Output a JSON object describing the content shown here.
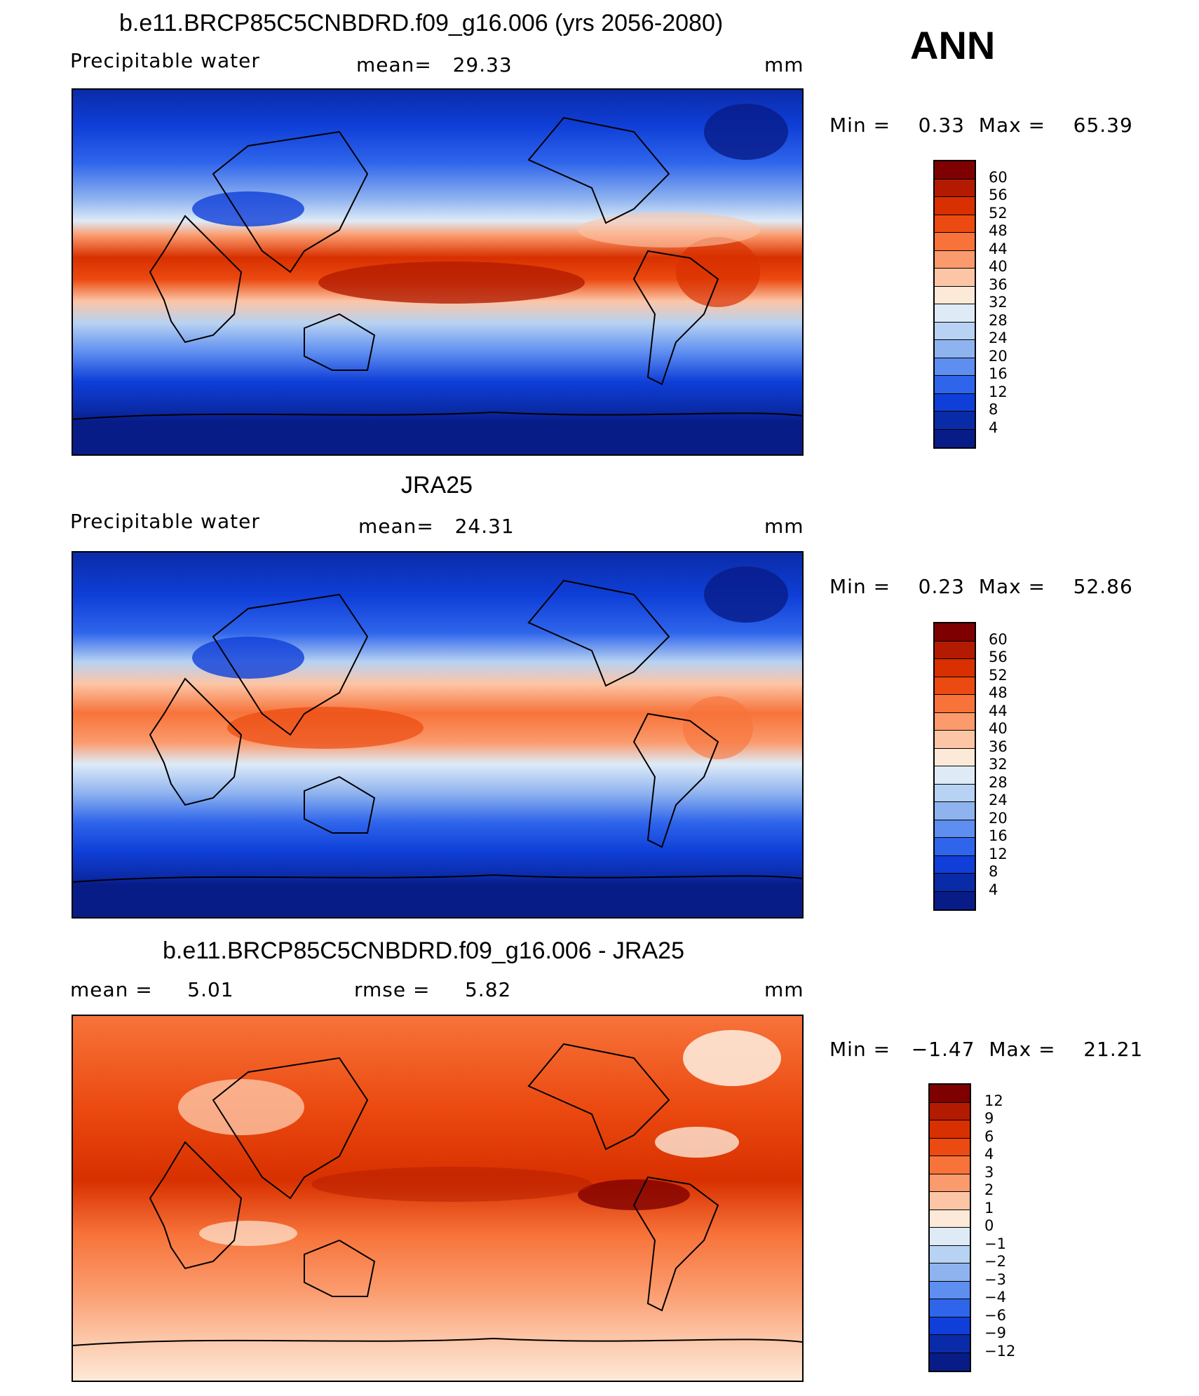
{
  "season": "ANN",
  "panels": [
    {
      "title": "b.e11.BRCP85C5CNBDRD.f09_g16.006 (yrs 2056-2080)",
      "variable": "Precipitable water",
      "stat1": "mean=   29.33",
      "stat2": "",
      "units": "mm",
      "minmax": "Min =    0.33  Max =    65.39",
      "colorbar": {
        "levels": [
          "60",
          "56",
          "52",
          "48",
          "44",
          "40",
          "36",
          "32",
          "28",
          "24",
          "20",
          "16",
          "12",
          "8",
          "4"
        ],
        "colors": [
          "#7f0000",
          "#b31b00",
          "#d83000",
          "#eb4a10",
          "#f7733a",
          "#fb9a6c",
          "#fcc5a6",
          "#fde9d8",
          "#deebf7",
          "#b7d2f2",
          "#8fb3ef",
          "#5e8ef0",
          "#2f65eb",
          "#0f3fd8",
          "#0a2ba8",
          "#081c88"
        ]
      }
    },
    {
      "title": "JRA25",
      "variable": "Precipitable water",
      "stat1": "mean=   24.31",
      "stat2": "",
      "units": "mm",
      "minmax": "Min =    0.23  Max =    52.86",
      "colorbar": {
        "levels": [
          "60",
          "56",
          "52",
          "48",
          "44",
          "40",
          "36",
          "32",
          "28",
          "24",
          "20",
          "16",
          "12",
          "8",
          "4"
        ],
        "colors": [
          "#7f0000",
          "#b31b00",
          "#d83000",
          "#eb4a10",
          "#f7733a",
          "#fb9a6c",
          "#fcc5a6",
          "#fde9d8",
          "#deebf7",
          "#b7d2f2",
          "#8fb3ef",
          "#5e8ef0",
          "#2f65eb",
          "#0f3fd8",
          "#0a2ba8",
          "#081c88"
        ]
      }
    },
    {
      "title": "b.e11.BRCP85C5CNBDRD.f09_g16.006 - JRA25",
      "variable": "mean =     5.01",
      "stat1": "rmse =     5.82",
      "stat2": "",
      "units": "mm",
      "minmax": "Min =   −1.47  Max =    21.21",
      "colorbar": {
        "levels": [
          "12",
          "9",
          "6",
          "4",
          "3",
          "2",
          "1",
          "0",
          "−1",
          "−2",
          "−3",
          "−4",
          "−6",
          "−9",
          "−12"
        ],
        "colors": [
          "#7f0000",
          "#b31b00",
          "#d83000",
          "#eb4a10",
          "#f7733a",
          "#fb9a6c",
          "#fcc5a6",
          "#fde9d8",
          "#deebf7",
          "#b7d2f2",
          "#8fb3ef",
          "#5e8ef0",
          "#2f65eb",
          "#0f3fd8",
          "#0a2ba8",
          "#081c88"
        ]
      }
    }
  ]
}
